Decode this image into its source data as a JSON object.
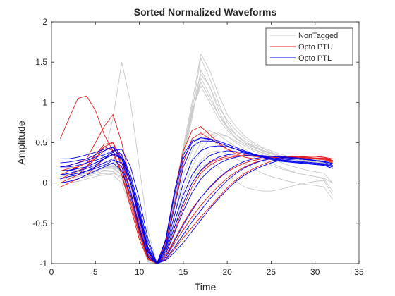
{
  "chart_data": {
    "type": "line",
    "title": "Sorted Normalized Waveforms",
    "xlabel": "Time",
    "ylabel": "Amplitude",
    "xlim": [
      0,
      35
    ],
    "ylim": [
      -1,
      2
    ],
    "xticks": [
      0,
      5,
      10,
      15,
      20,
      25,
      30,
      35
    ],
    "yticks": [
      -1,
      -0.5,
      0,
      0.5,
      1,
      1.5,
      2
    ],
    "xtick_labels": [
      "0",
      "5",
      "10",
      "15",
      "20",
      "25",
      "30",
      "35"
    ],
    "ytick_labels": [
      "-1",
      "-0.5",
      "0",
      "0.5",
      "1",
      "1.5",
      "2"
    ],
    "grid": false,
    "legend_position": "top-right",
    "x": [
      1,
      2,
      3,
      4,
      5,
      6,
      7,
      8,
      9,
      10,
      11,
      12,
      13,
      14,
      15,
      16,
      17,
      18,
      19,
      20,
      21,
      22,
      23,
      24,
      25,
      26,
      27,
      28,
      29,
      30,
      31,
      32
    ],
    "series": [
      {
        "name": "NonTagged",
        "color": "#c8c8c8",
        "values": [
          [
            0.1,
            0.1,
            0.12,
            0.14,
            0.16,
            0.18,
            0.18,
            0.1,
            -0.2,
            -0.6,
            -0.95,
            -1.0,
            -0.75,
            -0.2,
            0.4,
            0.9,
            1.2,
            1.0,
            0.8,
            0.65,
            0.55,
            0.48,
            0.42,
            0.38,
            0.34,
            0.32,
            0.3,
            0.28,
            0.27,
            0.26,
            0.25,
            0.2
          ],
          [
            0.05,
            0.08,
            0.1,
            0.12,
            0.15,
            0.2,
            0.22,
            0.15,
            -0.1,
            -0.5,
            -0.9,
            -1.0,
            -0.8,
            -0.3,
            0.3,
            0.8,
            1.4,
            1.2,
            0.9,
            0.7,
            0.6,
            0.5,
            0.45,
            0.4,
            0.36,
            0.33,
            0.3,
            0.29,
            0.28,
            0.27,
            0.25,
            0.22
          ],
          [
            0.15,
            0.15,
            0.16,
            0.18,
            0.2,
            0.35,
            0.8,
            1.5,
            1.0,
            0.2,
            -0.6,
            -1.0,
            -0.7,
            -0.2,
            0.4,
            0.9,
            1.55,
            1.3,
            1.0,
            0.75,
            0.6,
            0.5,
            0.44,
            0.4,
            0.36,
            0.33,
            0.3,
            0.28,
            0.27,
            0.26,
            0.25,
            0.2
          ],
          [
            0.0,
            0.02,
            0.05,
            0.08,
            0.1,
            0.12,
            0.1,
            0.0,
            -0.3,
            -0.7,
            -0.98,
            -1.0,
            -0.85,
            -0.5,
            -0.1,
            0.2,
            0.4,
            0.55,
            0.6,
            0.58,
            0.5,
            0.42,
            0.36,
            0.3,
            0.25,
            0.2,
            0.16,
            0.12,
            0.1,
            0.08,
            0.05,
            -0.1
          ],
          [
            0.1,
            0.12,
            0.14,
            0.15,
            0.18,
            0.22,
            0.25,
            0.2,
            -0.05,
            -0.45,
            -0.88,
            -1.0,
            -0.78,
            -0.25,
            0.35,
            0.85,
            1.3,
            1.1,
            0.85,
            0.68,
            0.56,
            0.48,
            0.42,
            0.37,
            0.33,
            0.3,
            0.28,
            0.27,
            0.26,
            0.25,
            0.24,
            0.2
          ],
          [
            0.2,
            0.2,
            0.18,
            0.18,
            0.2,
            0.22,
            0.2,
            0.1,
            -0.2,
            -0.6,
            -0.92,
            -1.0,
            -0.82,
            -0.4,
            0.1,
            0.4,
            0.6,
            0.65,
            0.6,
            0.52,
            0.45,
            0.38,
            0.32,
            0.27,
            0.22,
            0.18,
            0.15,
            0.12,
            0.1,
            0.08,
            0.06,
            0.0
          ],
          [
            0.0,
            0.0,
            0.02,
            0.05,
            0.08,
            0.1,
            0.12,
            0.08,
            -0.15,
            -0.55,
            -0.9,
            -1.0,
            -0.88,
            -0.55,
            -0.2,
            0.05,
            0.2,
            0.25,
            0.2,
            0.1,
            0.02,
            -0.05,
            -0.08,
            -0.1,
            -0.1,
            -0.08,
            -0.05,
            -0.02,
            0.0,
            0.02,
            0.03,
            -0.15
          ],
          [
            0.1,
            0.1,
            0.12,
            0.14,
            0.16,
            0.18,
            0.2,
            0.15,
            -0.1,
            -0.5,
            -0.9,
            -1.0,
            -0.72,
            -0.15,
            0.45,
            1.0,
            1.6,
            1.4,
            1.1,
            0.85,
            0.7,
            0.58,
            0.5,
            0.44,
            0.4,
            0.36,
            0.33,
            0.31,
            0.3,
            0.29,
            0.28,
            0.25
          ],
          [
            0.05,
            0.06,
            0.08,
            0.1,
            0.12,
            0.15,
            0.14,
            0.05,
            -0.25,
            -0.65,
            -0.96,
            -1.0,
            -0.8,
            -0.4,
            0.0,
            0.3,
            0.5,
            0.6,
            0.62,
            0.58,
            0.52,
            0.46,
            0.4,
            0.35,
            0.3,
            0.26,
            0.22,
            0.19,
            0.16,
            0.14,
            0.12,
            0.0
          ],
          [
            0.15,
            0.16,
            0.18,
            0.2,
            0.22,
            0.25,
            0.28,
            0.2,
            -0.05,
            -0.45,
            -0.85,
            -1.0,
            -0.75,
            -0.2,
            0.4,
            0.95,
            1.35,
            1.2,
            0.95,
            0.78,
            0.65,
            0.55,
            0.48,
            0.43,
            0.38,
            0.34,
            0.31,
            0.29,
            0.28,
            0.27,
            0.26,
            0.22
          ],
          [
            0.1,
            0.1,
            0.1,
            0.12,
            0.14,
            0.16,
            0.15,
            0.05,
            -0.2,
            -0.6,
            -0.94,
            -1.0,
            -0.84,
            -0.5,
            -0.15,
            0.1,
            0.28,
            0.38,
            0.4,
            0.36,
            0.3,
            0.24,
            0.18,
            0.12,
            0.08,
            0.05,
            0.02,
            0.0,
            -0.02,
            -0.03,
            -0.05,
            -0.2
          ],
          [
            0.08,
            0.1,
            0.12,
            0.14,
            0.16,
            0.19,
            0.21,
            0.14,
            -0.12,
            -0.52,
            -0.9,
            -1.0,
            -0.76,
            -0.22,
            0.38,
            0.88,
            1.25,
            1.05,
            0.85,
            0.7,
            0.6,
            0.52,
            0.46,
            0.41,
            0.37,
            0.34,
            0.32,
            0.3,
            0.29,
            0.28,
            0.27,
            0.24
          ]
        ]
      },
      {
        "name": "Opto PTU",
        "color": "#e41a1c",
        "values": [
          [
            0.55,
            0.8,
            1.05,
            1.08,
            0.9,
            0.6,
            0.4,
            0.1,
            -0.3,
            -0.7,
            -0.95,
            -1.0,
            -0.7,
            -0.1,
            0.4,
            0.65,
            0.7,
            0.6,
            0.5,
            0.42,
            0.36,
            0.32,
            0.3,
            0.3,
            0.3,
            0.31,
            0.32,
            0.32,
            0.33,
            0.33,
            0.32,
            0.3
          ],
          [
            0.1,
            0.15,
            0.2,
            0.25,
            0.3,
            0.45,
            0.5,
            0.3,
            -0.1,
            -0.55,
            -0.9,
            -1.0,
            -0.9,
            -0.7,
            -0.5,
            -0.32,
            -0.18,
            -0.06,
            0.05,
            0.14,
            0.2,
            0.25,
            0.28,
            0.3,
            0.31,
            0.32,
            0.32,
            0.32,
            0.31,
            0.3,
            0.29,
            0.25
          ],
          [
            0.2,
            0.22,
            0.25,
            0.3,
            0.5,
            0.7,
            0.85,
            0.5,
            0.0,
            -0.5,
            -0.88,
            -1.0,
            -0.85,
            -0.55,
            -0.25,
            0.0,
            0.15,
            0.25,
            0.3,
            0.33,
            0.34,
            0.34,
            0.34,
            0.33,
            0.33,
            0.32,
            0.32,
            0.31,
            0.31,
            0.3,
            0.3,
            0.28
          ],
          [
            0.0,
            0.05,
            0.1,
            0.2,
            0.35,
            0.45,
            0.4,
            0.1,
            -0.25,
            -0.65,
            -0.94,
            -1.0,
            -0.92,
            -0.75,
            -0.58,
            -0.42,
            -0.28,
            -0.15,
            -0.04,
            0.06,
            0.14,
            0.2,
            0.25,
            0.28,
            0.3,
            0.31,
            0.32,
            0.32,
            0.32,
            0.31,
            0.3,
            0.26
          ],
          [
            0.15,
            0.18,
            0.2,
            0.25,
            0.35,
            0.48,
            0.5,
            0.2,
            -0.2,
            -0.62,
            -0.93,
            -1.0,
            -0.75,
            -0.25,
            0.25,
            0.55,
            0.62,
            0.55,
            0.48,
            0.42,
            0.38,
            0.35,
            0.33,
            0.32,
            0.32,
            0.32,
            0.32,
            0.31,
            0.31,
            0.3,
            0.3,
            0.27
          ],
          [
            -0.05,
            0.0,
            0.05,
            0.1,
            0.2,
            0.3,
            0.35,
            0.15,
            -0.2,
            -0.6,
            -0.92,
            -1.0,
            -0.95,
            -0.82,
            -0.68,
            -0.55,
            -0.42,
            -0.3,
            -0.18,
            -0.06,
            0.04,
            0.12,
            0.18,
            0.23,
            0.27,
            0.3,
            0.32,
            0.33,
            0.33,
            0.33,
            0.32,
            0.28
          ],
          [
            0.05,
            0.1,
            0.15,
            0.2,
            0.3,
            0.4,
            0.45,
            0.25,
            -0.1,
            -0.55,
            -0.9,
            -1.0,
            -0.88,
            -0.6,
            -0.3,
            -0.05,
            0.12,
            0.22,
            0.28,
            0.31,
            0.33,
            0.34,
            0.34,
            0.34,
            0.33,
            0.33,
            0.33,
            0.32,
            0.32,
            0.31,
            0.31,
            0.28
          ]
        ]
      },
      {
        "name": "Opto PTL",
        "color": "#0000ee",
        "values": [
          [
            0.2,
            0.2,
            0.22,
            0.25,
            0.28,
            0.32,
            0.38,
            0.3,
            0.0,
            -0.45,
            -0.85,
            -1.0,
            -0.72,
            -0.15,
            0.3,
            0.5,
            0.56,
            0.55,
            0.52,
            0.48,
            0.44,
            0.4,
            0.36,
            0.33,
            0.3,
            0.28,
            0.26,
            0.25,
            0.24,
            0.23,
            0.22,
            0.18
          ],
          [
            0.15,
            0.16,
            0.18,
            0.2,
            0.25,
            0.3,
            0.4,
            0.42,
            0.2,
            -0.2,
            -0.7,
            -1.0,
            -0.8,
            -0.4,
            0.0,
            0.28,
            0.4,
            0.45,
            0.46,
            0.45,
            0.42,
            0.39,
            0.36,
            0.33,
            0.31,
            0.29,
            0.27,
            0.26,
            0.25,
            0.24,
            0.23,
            0.2
          ],
          [
            0.1,
            0.12,
            0.15,
            0.18,
            0.22,
            0.3,
            0.35,
            0.3,
            0.05,
            -0.35,
            -0.8,
            -1.0,
            -0.92,
            -0.72,
            -0.52,
            -0.34,
            -0.18,
            -0.05,
            0.06,
            0.15,
            0.22,
            0.27,
            0.3,
            0.32,
            0.33,
            0.33,
            0.32,
            0.31,
            0.3,
            0.28,
            0.27,
            0.24
          ],
          [
            0.25,
            0.26,
            0.28,
            0.3,
            0.35,
            0.4,
            0.45,
            0.35,
            0.05,
            -0.4,
            -0.82,
            -1.0,
            -0.7,
            -0.1,
            0.35,
            0.52,
            0.56,
            0.54,
            0.5,
            0.46,
            0.42,
            0.38,
            0.35,
            0.32,
            0.3,
            0.28,
            0.27,
            0.26,
            0.25,
            0.24,
            0.23,
            0.2
          ],
          [
            0.05,
            0.08,
            0.1,
            0.15,
            0.2,
            0.25,
            0.3,
            0.2,
            -0.1,
            -0.55,
            -0.9,
            -1.0,
            -0.94,
            -0.8,
            -0.64,
            -0.48,
            -0.34,
            -0.2,
            -0.08,
            0.03,
            0.12,
            0.19,
            0.24,
            0.28,
            0.3,
            0.31,
            0.31,
            0.3,
            0.29,
            0.28,
            0.26,
            0.22
          ],
          [
            0.2,
            0.22,
            0.25,
            0.28,
            0.32,
            0.35,
            0.4,
            0.35,
            0.1,
            -0.3,
            -0.75,
            -1.0,
            -0.85,
            -0.55,
            -0.25,
            0.0,
            0.16,
            0.26,
            0.32,
            0.35,
            0.36,
            0.36,
            0.35,
            0.34,
            0.33,
            0.32,
            0.31,
            0.3,
            0.29,
            0.28,
            0.27,
            0.24
          ],
          [
            0.1,
            0.1,
            0.12,
            0.15,
            0.18,
            0.22,
            0.28,
            0.25,
            0.0,
            -0.42,
            -0.84,
            -1.0,
            -0.96,
            -0.86,
            -0.74,
            -0.6,
            -0.46,
            -0.32,
            -0.2,
            -0.08,
            0.02,
            0.1,
            0.16,
            0.21,
            0.25,
            0.28,
            0.29,
            0.3,
            0.29,
            0.28,
            0.26,
            0.22
          ],
          [
            0.0,
            0.02,
            0.05,
            0.1,
            0.15,
            0.2,
            0.25,
            0.15,
            -0.15,
            -0.58,
            -0.92,
            -1.0,
            -0.78,
            -0.3,
            0.2,
            0.45,
            0.52,
            0.52,
            0.5,
            0.46,
            0.42,
            0.38,
            0.35,
            0.32,
            0.29,
            0.27,
            0.26,
            0.25,
            0.24,
            0.23,
            0.22,
            0.18
          ],
          [
            0.3,
            0.3,
            0.32,
            0.35,
            0.38,
            0.42,
            0.44,
            0.3,
            0.0,
            -0.45,
            -0.86,
            -1.0,
            -0.88,
            -0.62,
            -0.35,
            -0.12,
            0.05,
            0.16,
            0.24,
            0.29,
            0.32,
            0.34,
            0.34,
            0.34,
            0.33,
            0.32,
            0.31,
            0.3,
            0.29,
            0.28,
            0.27,
            0.24
          ],
          [
            0.15,
            0.15,
            0.18,
            0.2,
            0.25,
            0.3,
            0.36,
            0.32,
            0.05,
            -0.38,
            -0.82,
            -1.0,
            -0.82,
            -0.48,
            -0.15,
            0.1,
            0.25,
            0.34,
            0.38,
            0.4,
            0.39,
            0.37,
            0.35,
            0.33,
            0.31,
            0.29,
            0.28,
            0.27,
            0.26,
            0.25,
            0.24,
            0.21
          ]
        ]
      }
    ]
  }
}
